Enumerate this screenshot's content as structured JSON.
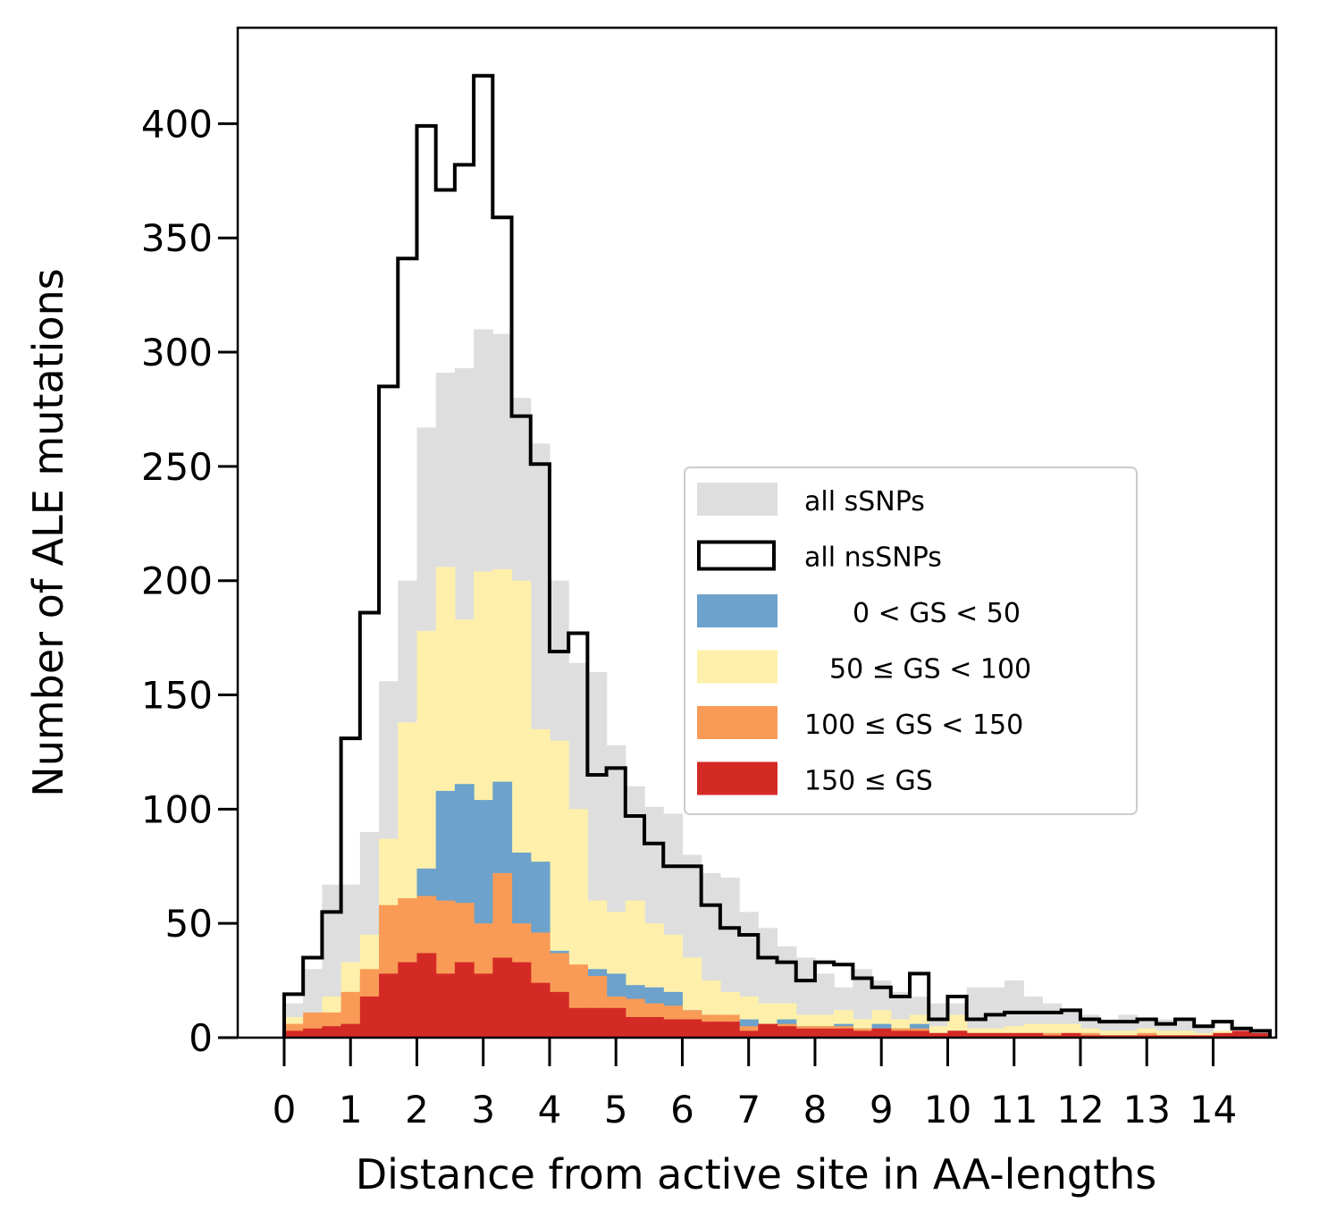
{
  "chart_data": {
    "type": "histogram",
    "xlabel": "Distance from active site in AA-lengths",
    "ylabel": "Number of ALE mutations",
    "xlim": [
      -0.7,
      14.95
    ],
    "ylim": [
      0,
      442
    ],
    "xticks": [
      0,
      1,
      2,
      3,
      4,
      5,
      6,
      7,
      8,
      9,
      10,
      11,
      12,
      13,
      14
    ],
    "xtick_labels": [
      "0",
      "1",
      "2",
      "3",
      "4",
      "5",
      "6",
      "7",
      "8",
      "9",
      "10",
      "11",
      "12",
      "13",
      "14"
    ],
    "yticks": [
      0,
      50,
      100,
      150,
      200,
      250,
      300,
      350,
      400
    ],
    "ytick_labels": [
      "0",
      "50",
      "100",
      "150",
      "200",
      "250",
      "300",
      "350",
      "400"
    ],
    "bin_width": 0.2857,
    "bin_start": 0,
    "legend_placement": "center-right",
    "colors": {
      "ssnp": "#dedede",
      "nssnp": "#000000",
      "gs_0_50": "#6ca2cb",
      "gs_50_100": "#fef0aa",
      "gs_100_150": "#f99b57",
      "gs_150": "#d42a26"
    },
    "legend": [
      {
        "key": "ssnp",
        "label": "all sSNPs",
        "style": "fill"
      },
      {
        "key": "nssnp",
        "label": "all nsSNPs",
        "style": "outline"
      },
      {
        "key": "gs_0_50",
        "label": "0 < GS < 50",
        "style": "fill"
      },
      {
        "key": "gs_50_100",
        "label": "50 ≤ GS < 100",
        "style": "fill"
      },
      {
        "key": "gs_100_150",
        "label": "100 ≤ GS < 150",
        "style": "fill"
      },
      {
        "key": "gs_150",
        "label": "150 ≤ GS",
        "style": "fill"
      }
    ],
    "series": [
      {
        "key": "ssnp",
        "values": [
          15,
          30,
          67,
          67,
          90,
          156,
          200,
          267,
          291,
          293,
          310,
          308,
          280,
          260,
          200,
          164,
          160,
          128,
          110,
          101,
          98,
          80,
          72,
          70,
          55,
          48,
          40,
          35,
          28,
          22,
          30,
          25,
          20,
          18,
          15,
          15,
          22,
          22,
          25,
          18,
          15,
          12,
          10,
          8,
          10,
          8,
          8,
          7,
          5,
          3,
          2,
          1,
          0,
          0,
          0,
          0
        ]
      },
      {
        "key": "nssnp",
        "values": [
          19,
          35,
          55,
          131,
          186,
          285,
          341,
          399,
          371,
          382,
          421,
          359,
          272,
          251,
          169,
          177,
          115,
          118,
          97,
          85,
          75,
          75,
          58,
          48,
          45,
          35,
          33,
          25,
          33,
          32,
          26,
          22,
          18,
          28,
          8,
          18,
          8,
          10,
          11,
          11,
          11,
          12,
          8,
          7,
          7,
          8,
          6,
          8,
          5,
          7,
          4,
          3
        ]
      },
      {
        "key": "gs_50_100",
        "values": [
          9,
          8,
          18,
          33,
          45,
          87,
          138,
          178,
          206,
          183,
          204,
          205,
          200,
          135,
          130,
          100,
          60,
          55,
          60,
          50,
          45,
          35,
          25,
          20,
          18,
          15,
          15,
          10,
          10,
          12,
          8,
          12,
          8,
          10,
          5,
          10,
          4,
          4,
          5,
          6,
          6,
          6,
          4,
          3,
          3,
          4,
          3,
          3,
          2,
          3,
          2,
          1
        ]
      },
      {
        "key": "gs_0_50",
        "values": [
          0,
          3,
          6,
          16,
          27,
          30,
          40,
          74,
          108,
          111,
          104,
          112,
          81,
          77,
          38,
          30,
          30,
          28,
          23,
          22,
          20,
          12,
          10,
          8,
          8,
          5,
          8,
          5,
          5,
          6,
          4,
          6,
          4,
          6,
          2,
          3,
          2,
          2,
          2,
          2,
          2,
          2,
          2,
          1,
          1,
          2,
          1,
          1,
          0,
          1,
          0,
          0
        ]
      },
      {
        "key": "gs_100_150",
        "values": [
          6,
          11,
          11,
          20,
          30,
          58,
          61,
          62,
          60,
          59,
          50,
          72,
          50,
          46,
          37,
          32,
          27,
          18,
          17,
          15,
          14,
          12,
          10,
          10,
          5,
          6,
          6,
          5,
          5,
          5,
          4,
          4,
          4,
          4,
          2,
          3,
          2,
          2,
          2,
          2,
          2,
          2,
          2,
          1,
          1,
          2,
          1,
          1,
          1,
          2,
          2,
          1
        ]
      },
      {
        "key": "gs_150",
        "values": [
          3,
          4,
          5,
          6,
          18,
          28,
          33,
          37,
          28,
          33,
          28,
          35,
          33,
          24,
          20,
          13,
          13,
          13,
          9,
          9,
          8,
          8,
          7,
          7,
          3,
          6,
          5,
          4,
          4,
          4,
          3,
          4,
          3,
          3,
          2,
          3,
          2,
          2,
          2,
          2,
          1,
          2,
          1,
          1,
          1,
          1,
          1,
          1,
          1,
          2,
          3,
          2
        ]
      }
    ]
  }
}
